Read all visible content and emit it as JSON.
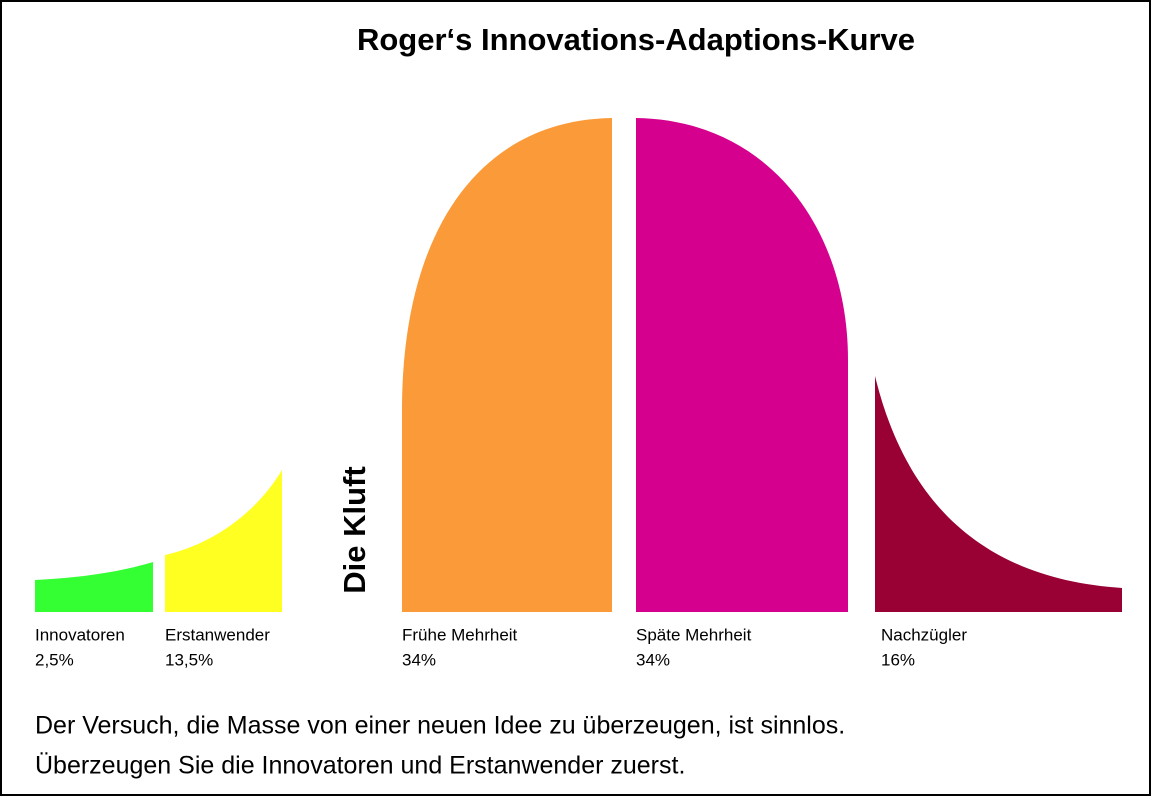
{
  "title": "Roger‘s Innovations-Adaptions-Kurve",
  "gap_label": "Die Kluft",
  "segments": [
    {
      "label": "Innovatoren",
      "share": "2,5%"
    },
    {
      "label": "Erstanwender",
      "share": "13,5%"
    },
    {
      "label": "Frühe Mehrheit",
      "share": "34%"
    },
    {
      "label": "Späte Mehrheit",
      "share": "34%"
    },
    {
      "label": "Nachzügler",
      "share": "16%"
    }
  ],
  "caption": [
    "Der Versuch, die Masse von einer neuen Idee zu überzeugen, ist sinnlos.",
    "Überzeugen Sie die Innovatoren und Erstanwender zuerst."
  ]
}
